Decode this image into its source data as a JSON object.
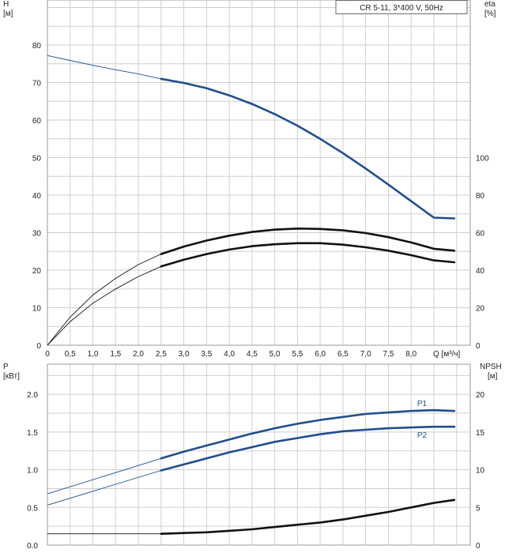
{
  "chart_data": [
    {
      "type": "line",
      "legend_box": "CR 5-11, 3*400 V, 50Hz",
      "y_axis_left": {
        "title": "H",
        "unit": "[м]",
        "ticks": [
          "0",
          "10",
          "20",
          "30",
          "40",
          "50",
          "60",
          "70",
          "80"
        ],
        "ylim": [
          0,
          92
        ]
      },
      "y_axis_right": {
        "title": "eta",
        "unit": "[%]",
        "ticks": [
          "0",
          "20",
          "40",
          "60",
          "80",
          "100"
        ],
        "ylim": [
          0,
          92
        ]
      },
      "x_axis": {
        "label": "Q [м³/ч]",
        "ticks": [
          "0",
          "0,5",
          "1,0",
          "1,5",
          "2,0",
          "2,5",
          "3,0",
          "3,5",
          "4,0",
          "4,5",
          "5,0",
          "5,5",
          "6,0",
          "6,5",
          "7,0",
          "7,5",
          "8,0"
        ],
        "xlim": [
          0,
          9.3
        ]
      },
      "grid": true,
      "series": [
        {
          "role": "H",
          "axis": "left",
          "color": "#1f4e8c",
          "thin_x": [
            0,
            0.5,
            1.0,
            1.5,
            2.0,
            2.5
          ],
          "thin_y": [
            77.2,
            75.9,
            74.6,
            73.4,
            72.3,
            71.0
          ],
          "thick_x": [
            2.5,
            3.0,
            3.5,
            4.0,
            4.5,
            5.0,
            5.5,
            6.0,
            6.5,
            7.0,
            7.5,
            8.0,
            8.5,
            8.95
          ],
          "thick_y": [
            71.0,
            69.9,
            68.5,
            66.6,
            64.3,
            61.6,
            58.5,
            55.0,
            51.2,
            47.1,
            42.8,
            38.4,
            34.0,
            33.8
          ]
        },
        {
          "role": "eta_upper",
          "axis": "left",
          "color": "#111111",
          "thin_x": [
            0,
            0.5,
            1.0,
            1.5,
            2.0,
            2.5
          ],
          "thin_y": [
            0,
            7.5,
            13.4,
            17.8,
            21.5,
            24.3
          ],
          "thick_x": [
            2.5,
            3.0,
            3.5,
            4.0,
            4.5,
            5.0,
            5.5,
            6.0,
            6.5,
            7.0,
            7.5,
            8.0,
            8.5,
            8.95
          ],
          "thick_y": [
            24.3,
            26.3,
            27.9,
            29.2,
            30.2,
            30.8,
            31.1,
            31.0,
            30.6,
            29.9,
            28.8,
            27.4,
            25.7,
            25.2
          ]
        },
        {
          "role": "eta_lower",
          "axis": "left",
          "color": "#111111",
          "thin_x": [
            0,
            0.5,
            1.0,
            1.5,
            2.0,
            2.5
          ],
          "thin_y": [
            0,
            6.3,
            11.2,
            15.0,
            18.3,
            21.0
          ],
          "thick_x": [
            2.5,
            3.0,
            3.5,
            4.0,
            4.5,
            5.0,
            5.5,
            6.0,
            6.5,
            7.0,
            7.5,
            8.0,
            8.5,
            8.95
          ],
          "thick_y": [
            21.0,
            22.8,
            24.3,
            25.5,
            26.4,
            26.9,
            27.2,
            27.2,
            26.8,
            26.1,
            25.2,
            24.0,
            22.6,
            22.1
          ]
        }
      ]
    },
    {
      "type": "line",
      "y_axis_left": {
        "title": "P",
        "unit": "[кВт]",
        "ticks": [
          "0.0",
          "0.5",
          "1.0",
          "1.5",
          "2.0"
        ],
        "ylim": [
          0,
          2.4
        ]
      },
      "y_axis_right": {
        "title": "NPSH",
        "unit": "[м]",
        "ticks": [
          "0",
          "5",
          "10",
          "15",
          "20"
        ],
        "ylim": [
          0,
          24
        ]
      },
      "x_axis": {
        "xlim": [
          0,
          9.3
        ]
      },
      "grid": true,
      "series": [
        {
          "name": "P1",
          "axis": "left",
          "color": "#1f4e8c",
          "thin_x": [
            0,
            2.5
          ],
          "thin_y": [
            0.68,
            1.15
          ],
          "thick_x": [
            2.5,
            3.0,
            3.5,
            4.0,
            4.5,
            5.0,
            5.5,
            6.0,
            6.5,
            7.0,
            7.5,
            8.0,
            8.5,
            8.95
          ],
          "thick_y": [
            1.15,
            1.24,
            1.32,
            1.4,
            1.48,
            1.55,
            1.61,
            1.66,
            1.7,
            1.74,
            1.76,
            1.78,
            1.79,
            1.78
          ]
        },
        {
          "name": "P2",
          "axis": "left",
          "color": "#1f4e8c",
          "thin_x": [
            0,
            2.5
          ],
          "thin_y": [
            0.53,
            0.99
          ],
          "thick_x": [
            2.5,
            3.0,
            3.5,
            4.0,
            4.5,
            5.0,
            5.5,
            6.0,
            6.5,
            7.0,
            7.5,
            8.0,
            8.5,
            8.95
          ],
          "thick_y": [
            0.99,
            1.07,
            1.15,
            1.23,
            1.3,
            1.37,
            1.42,
            1.47,
            1.51,
            1.53,
            1.55,
            1.56,
            1.57,
            1.57
          ]
        },
        {
          "role": "NPSH",
          "axis": "right",
          "color": "#111111",
          "thin_x": [
            0,
            2.5
          ],
          "thin_y": [
            1.5,
            1.5
          ],
          "thick_x": [
            2.5,
            3.0,
            3.5,
            4.0,
            4.5,
            5.0,
            5.5,
            6.0,
            6.5,
            7.0,
            7.5,
            8.0,
            8.5,
            8.95
          ],
          "thick_y": [
            1.5,
            1.6,
            1.7,
            1.9,
            2.1,
            2.4,
            2.7,
            3.0,
            3.4,
            3.9,
            4.4,
            5.0,
            5.6,
            6.0
          ]
        }
      ]
    }
  ]
}
